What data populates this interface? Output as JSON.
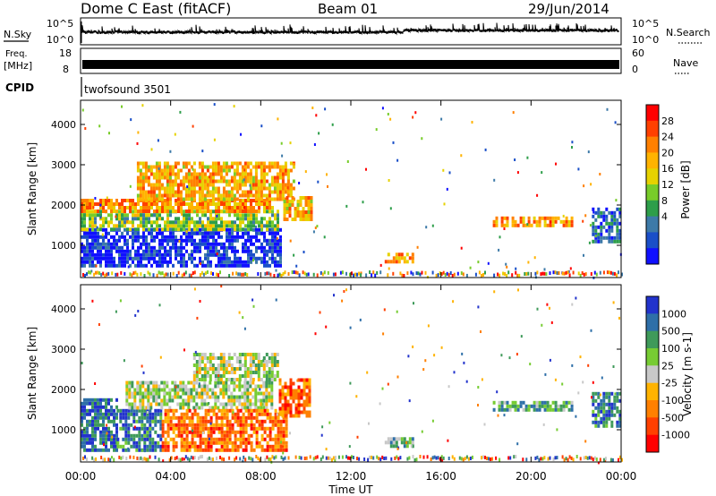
{
  "header": {
    "title": "Dome C East (fitACF)",
    "beam": "Beam 01",
    "date": "29/Jun/2014"
  },
  "top_panels": {
    "nsky": {
      "label": "N.Sky",
      "left_ticks": [
        "10^5",
        "10^0"
      ],
      "right_ticks": [
        "10^5",
        "10^0"
      ],
      "right_label": "N.Search"
    },
    "freq": {
      "label_line1": "Freq.",
      "label_line2": "[MHz]",
      "left_ticks": [
        "18",
        "8"
      ],
      "right_ticks": [
        "60",
        "0"
      ],
      "right_label": "Nave"
    },
    "cpid": {
      "label": "CPID",
      "value": "twofsound 3501"
    }
  },
  "chart_data": [
    {
      "type": "heatmap",
      "name": "power",
      "ylabel": "Slant Range [km]",
      "ylim": [
        200,
        4600
      ],
      "yticks": [
        "4000",
        "3000",
        "2000",
        "1000"
      ],
      "colorbar": {
        "title": "Power [dB]",
        "ticks": [
          "28",
          "24",
          "20",
          "16",
          "12",
          "8",
          "4"
        ],
        "colors": [
          "#ff0000",
          "#ff4000",
          "#ff8000",
          "#ffb300",
          "#e6d200",
          "#78cc2a",
          "#2e9e4a",
          "#3d7aa8",
          "#1a4fc8",
          "#1010ff"
        ]
      },
      "regions": [
        {
          "t0": 0.0,
          "t1": 8.9,
          "r0": 450,
          "r1": 1350,
          "level": 0.92
        },
        {
          "t0": 0.0,
          "t1": 8.8,
          "r0": 1350,
          "r1": 1800,
          "level": 0.55
        },
        {
          "t0": 0.0,
          "t1": 8.5,
          "r0": 1800,
          "r1": 2100,
          "level": 0.28
        },
        {
          "t0": 2.5,
          "t1": 9.5,
          "r0": 2100,
          "r1": 3000,
          "level": 0.35
        },
        {
          "t0": 9.0,
          "t1": 10.2,
          "r0": 1600,
          "r1": 2200,
          "level": 0.35
        },
        {
          "t0": 13.5,
          "t1": 14.8,
          "r0": 550,
          "r1": 750,
          "level": 0.3
        },
        {
          "t0": 18.3,
          "t1": 21.8,
          "r0": 1450,
          "r1": 1650,
          "level": 0.3
        },
        {
          "t0": 22.7,
          "t1": 24.0,
          "r0": 1050,
          "r1": 1900,
          "level": 0.8
        }
      ]
    },
    {
      "type": "heatmap",
      "name": "velocity",
      "xlabel": "Time UT",
      "ylabel": "Slant Range [km]",
      "ylim": [
        200,
        4600
      ],
      "yticks": [
        "4000",
        "3000",
        "2000",
        "1000"
      ],
      "xticks": [
        "00:00",
        "04:00",
        "08:00",
        "12:00",
        "16:00",
        "20:00",
        "00:00"
      ],
      "colorbar": {
        "title": "Velocity [m s-1]",
        "ticks": [
          "1000",
          "500",
          "100",
          "25",
          "-25",
          "-100",
          "-500",
          "-1000"
        ],
        "colors": [
          "#2233cc",
          "#2e6fa8",
          "#3f9a5a",
          "#77cc33",
          "#c8c8c8",
          "#ffb300",
          "#ff8000",
          "#ff4000",
          "#ff0000"
        ]
      },
      "regions": [
        {
          "t0": 0.0,
          "t1": 1.6,
          "r0": 450,
          "r1": 1750,
          "level": 0.15
        },
        {
          "t0": 1.6,
          "t1": 3.6,
          "r0": 450,
          "r1": 1500,
          "level": 0.2
        },
        {
          "t0": 2.0,
          "t1": 8.5,
          "r0": 1500,
          "r1": 2200,
          "level": 0.45
        },
        {
          "t0": 3.6,
          "t1": 9.2,
          "r0": 450,
          "r1": 1500,
          "level": 0.75
        },
        {
          "t0": 5.0,
          "t1": 8.7,
          "r0": 2200,
          "r1": 2900,
          "level": 0.45
        },
        {
          "t0": 8.8,
          "t1": 10.2,
          "r0": 1300,
          "r1": 2200,
          "level": 0.78
        },
        {
          "t0": 13.5,
          "t1": 14.8,
          "r0": 550,
          "r1": 750,
          "level": 0.35
        },
        {
          "t0": 18.3,
          "t1": 21.8,
          "r0": 1450,
          "r1": 1650,
          "level": 0.3
        },
        {
          "t0": 22.7,
          "t1": 24.0,
          "r0": 1050,
          "r1": 1900,
          "level": 0.2
        }
      ]
    }
  ]
}
